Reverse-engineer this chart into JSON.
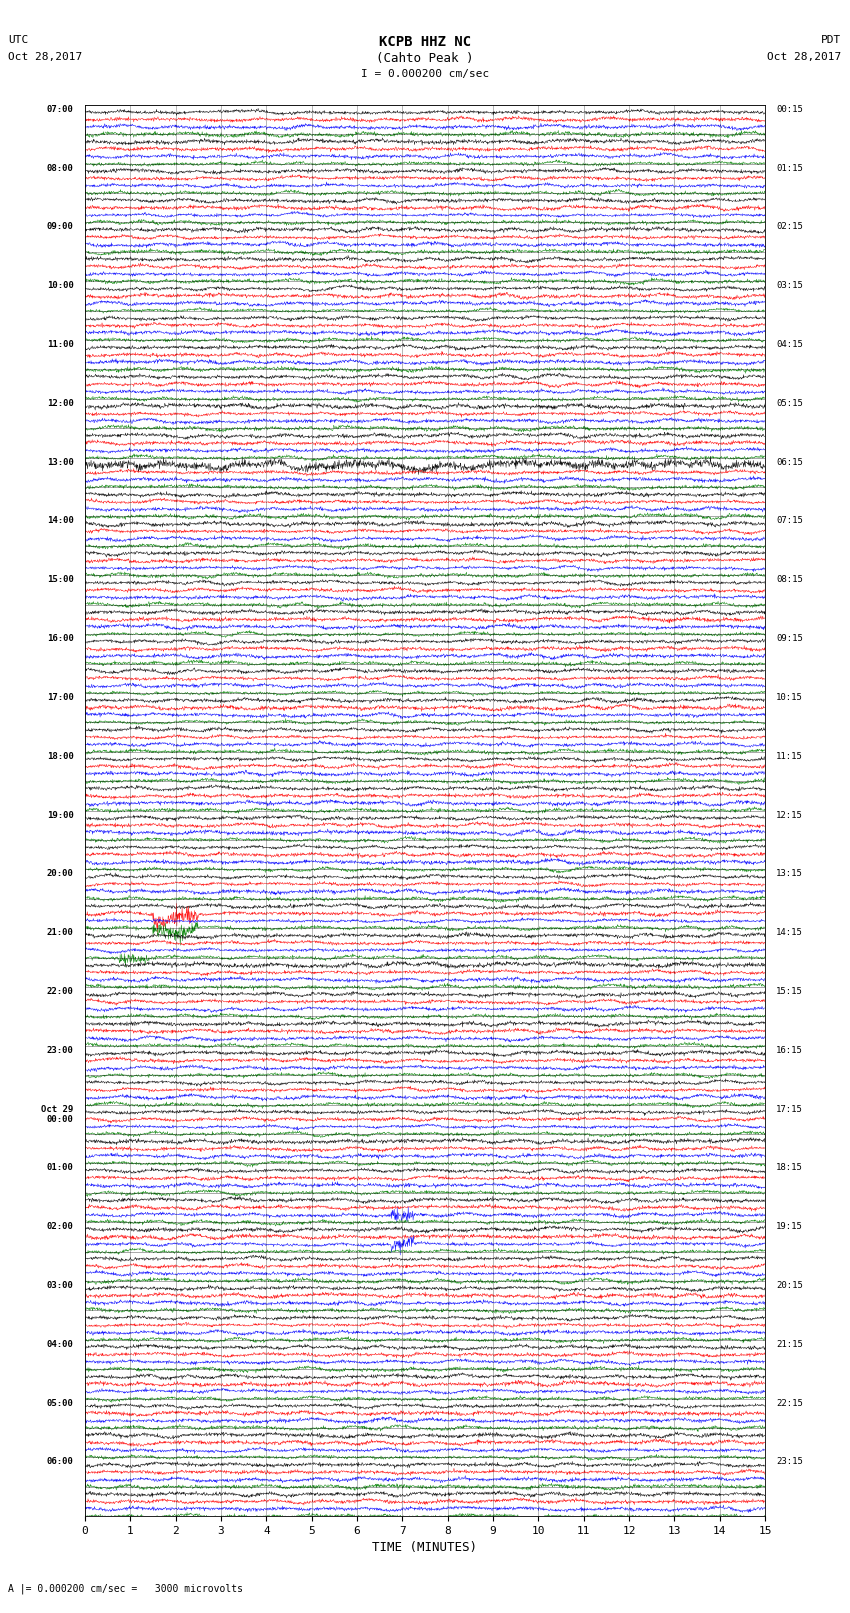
{
  "title_line1": "KCPB HHZ NC",
  "title_line2": "(Cahto Peak )",
  "scale_label": "I = 0.000200 cm/sec",
  "bottom_label": "A |= 0.000200 cm/sec =   3000 microvolts",
  "left_header": "UTC",
  "left_date": "Oct 28,2017",
  "right_header": "PDT",
  "right_date": "Oct 28,2017",
  "xlabel": "TIME (MINUTES)",
  "xtick_vals": [
    0,
    1,
    2,
    3,
    4,
    5,
    6,
    7,
    8,
    9,
    10,
    11,
    12,
    13,
    14,
    15
  ],
  "left_times": [
    "07:00",
    "",
    "08:00",
    "",
    "09:00",
    "",
    "10:00",
    "",
    "11:00",
    "",
    "12:00",
    "",
    "13:00",
    "",
    "14:00",
    "",
    "15:00",
    "",
    "16:00",
    "",
    "17:00",
    "",
    "18:00",
    "",
    "19:00",
    "",
    "20:00",
    "",
    "21:00",
    "",
    "22:00",
    "",
    "23:00",
    "",
    "Oct 29\n00:00",
    "",
    "01:00",
    "",
    "02:00",
    "",
    "03:00",
    "",
    "04:00",
    "",
    "05:00",
    "",
    "06:00",
    ""
  ],
  "right_times": [
    "00:15",
    "",
    "01:15",
    "",
    "02:15",
    "",
    "03:15",
    "",
    "04:15",
    "",
    "05:15",
    "",
    "06:15",
    "",
    "07:15",
    "",
    "08:15",
    "",
    "09:15",
    "",
    "10:15",
    "",
    "11:15",
    "",
    "12:15",
    "",
    "13:15",
    "",
    "14:15",
    "",
    "15:15",
    "",
    "16:15",
    "",
    "17:15",
    "",
    "18:15",
    "",
    "19:15",
    "",
    "20:15",
    "",
    "21:15",
    "",
    "22:15",
    "",
    "23:15",
    ""
  ],
  "n_rows": 48,
  "colors": [
    "black",
    "red",
    "blue",
    "green"
  ],
  "bg_color": "white",
  "fig_width": 8.5,
  "fig_height": 16.13,
  "dpi": 100
}
